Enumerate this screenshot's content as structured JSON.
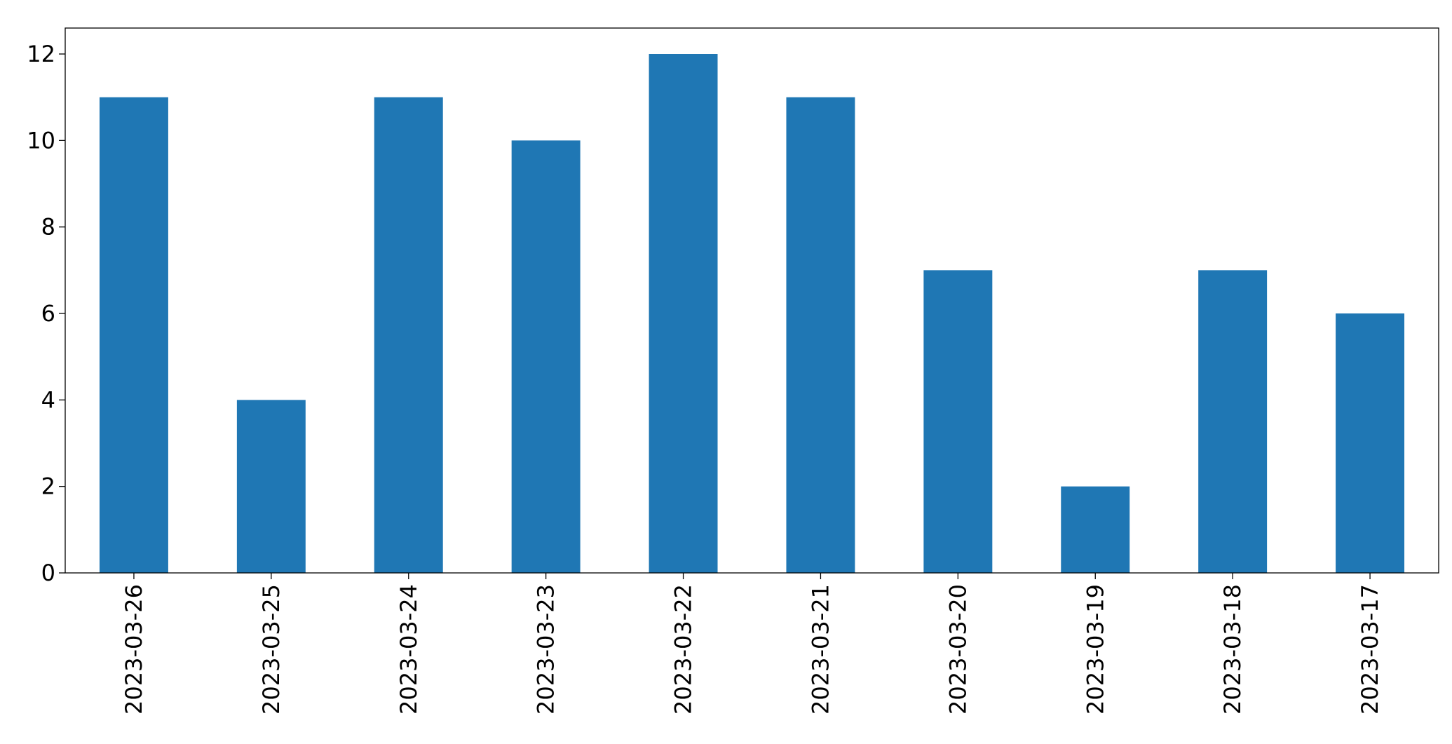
{
  "chart_data": {
    "type": "bar",
    "categories": [
      "2023-03-26",
      "2023-03-25",
      "2023-03-24",
      "2023-03-23",
      "2023-03-22",
      "2023-03-21",
      "2023-03-20",
      "2023-03-19",
      "2023-03-18",
      "2023-03-17"
    ],
    "values": [
      11,
      4,
      11,
      10,
      12,
      11,
      7,
      2,
      7,
      6
    ],
    "color": "#1f77b4",
    "ylim": [
      0,
      12.6
    ],
    "yticks": [
      0,
      2,
      4,
      6,
      8,
      10,
      12
    ],
    "grid": false
  }
}
